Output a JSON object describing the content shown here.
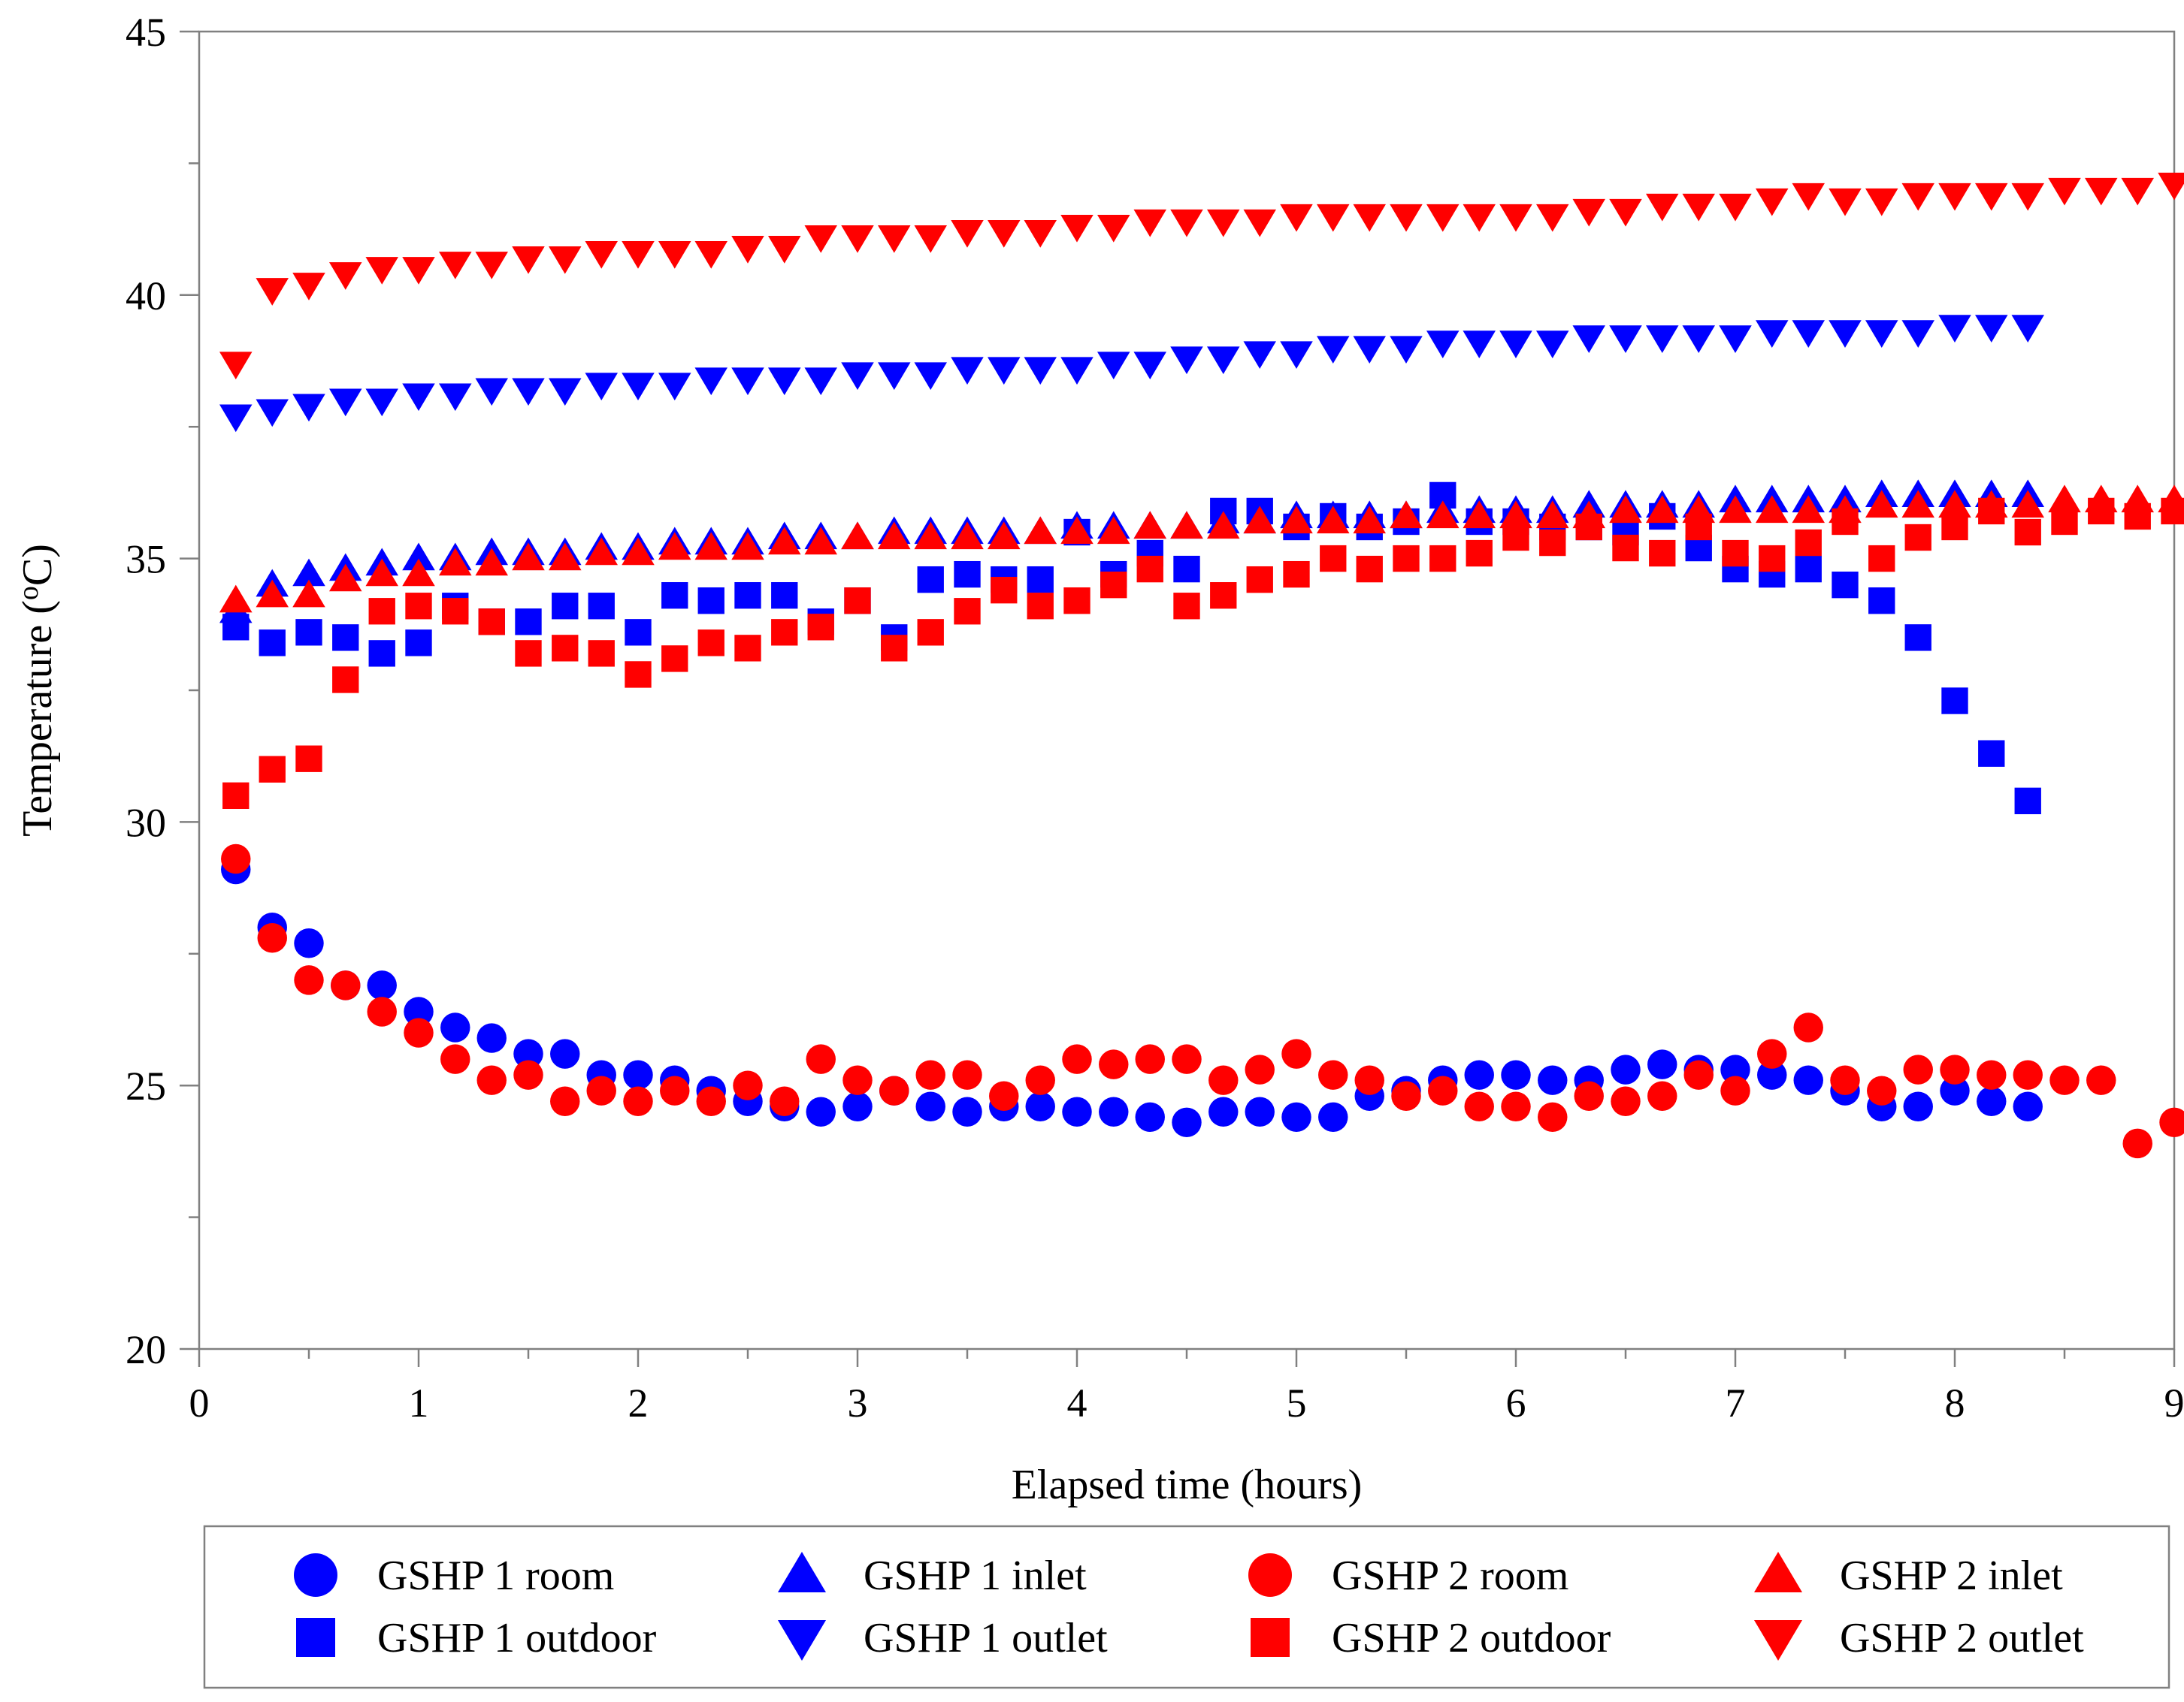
{
  "chart_data": {
    "type": "scatter",
    "title": "",
    "xlabel": "Elapsed time (hours)",
    "ylabel": "Temperature (",
    "ylabel_sup": "o",
    "ylabel_tail": "C)",
    "xlim": [
      0,
      9
    ],
    "ylim": [
      20,
      45
    ],
    "xticks": [
      0,
      1,
      2,
      3,
      4,
      5,
      6,
      7,
      8,
      9
    ],
    "yticks": [
      20,
      25,
      30,
      35,
      40,
      45
    ],
    "grid": false,
    "legend_position": "bottom",
    "x": [
      0.167,
      0.333,
      0.5,
      0.667,
      0.833,
      1.0,
      1.167,
      1.333,
      1.5,
      1.667,
      1.833,
      2.0,
      2.167,
      2.333,
      2.5,
      2.667,
      2.833,
      3.0,
      3.167,
      3.333,
      3.5,
      3.667,
      3.833,
      4.0,
      4.167,
      4.333,
      4.5,
      4.667,
      4.833,
      5.0,
      5.167,
      5.333,
      5.5,
      5.667,
      5.833,
      6.0,
      6.167,
      6.333,
      6.5,
      6.667,
      6.833,
      7.0,
      7.167,
      7.333,
      7.5,
      7.667,
      7.833,
      8.0,
      8.167,
      8.333,
      8.5,
      8.667,
      8.833,
      9.0
    ],
    "series": [
      {
        "name": "GSHP 1 room",
        "color": "#0000ff",
        "marker": "circle",
        "values": [
          29.1,
          28.0,
          27.7,
          26.9,
          26.9,
          26.4,
          26.1,
          25.9,
          25.6,
          25.6,
          25.2,
          25.2,
          25.1,
          24.9,
          24.7,
          24.6,
          24.5,
          24.6,
          24.9,
          24.6,
          24.5,
          24.6,
          24.6,
          24.5,
          24.5,
          24.4,
          24.3,
          24.5,
          24.5,
          24.4,
          24.4,
          24.8,
          24.9,
          25.1,
          25.2,
          25.2,
          25.1,
          25.1,
          25.3,
          25.4,
          25.3,
          25.3,
          25.2,
          25.1,
          24.9,
          24.6,
          24.6,
          24.9,
          24.7,
          24.6,
          null,
          null,
          null,
          null
        ]
      },
      {
        "name": "GSHP 1 outdoor",
        "color": "#0000ff",
        "marker": "square",
        "values": [
          33.7,
          33.4,
          33.6,
          33.5,
          33.2,
          33.4,
          34.1,
          33.8,
          33.8,
          34.1,
          34.1,
          33.6,
          34.3,
          34.2,
          34.3,
          34.3,
          33.8,
          34.2,
          33.5,
          34.6,
          34.7,
          34.6,
          34.6,
          35.5,
          34.7,
          35.1,
          34.8,
          35.9,
          35.9,
          35.6,
          35.8,
          35.6,
          35.7,
          36.2,
          35.7,
          35.7,
          35.6,
          35.6,
          35.5,
          35.8,
          35.2,
          34.8,
          34.7,
          34.8,
          34.5,
          34.2,
          33.5,
          32.3,
          31.3,
          30.4,
          null,
          null,
          null,
          null
        ]
      },
      {
        "name": "GSHP 1 inlet",
        "color": "#0000ff",
        "marker": "triangle-up",
        "values": [
          34.0,
          34.5,
          34.7,
          34.8,
          34.9,
          35.0,
          35.0,
          35.1,
          35.1,
          35.1,
          35.2,
          35.2,
          35.3,
          35.3,
          35.3,
          35.4,
          35.4,
          35.4,
          35.5,
          35.5,
          35.5,
          35.5,
          35.5,
          35.6,
          35.6,
          35.6,
          35.6,
          35.7,
          35.7,
          35.8,
          35.8,
          35.8,
          35.8,
          35.9,
          35.9,
          35.9,
          35.9,
          36.0,
          36.0,
          36.0,
          36.0,
          36.1,
          36.1,
          36.1,
          36.1,
          36.2,
          36.2,
          36.2,
          36.2,
          36.2,
          null,
          null,
          null,
          null
        ]
      },
      {
        "name": "GSHP 1 outlet",
        "color": "#0000ff",
        "marker": "triangle-down",
        "values": [
          37.7,
          37.8,
          37.9,
          38.0,
          38.0,
          38.1,
          38.1,
          38.2,
          38.2,
          38.2,
          38.3,
          38.3,
          38.3,
          38.4,
          38.4,
          38.4,
          38.4,
          38.5,
          38.5,
          38.5,
          38.6,
          38.6,
          38.6,
          38.6,
          38.7,
          38.7,
          38.8,
          38.8,
          38.9,
          38.9,
          39.0,
          39.0,
          39.0,
          39.1,
          39.1,
          39.1,
          39.1,
          39.2,
          39.2,
          39.2,
          39.2,
          39.2,
          39.3,
          39.3,
          39.3,
          39.3,
          39.3,
          39.4,
          39.4,
          39.4,
          null,
          null,
          null,
          null
        ]
      },
      {
        "name": "GSHP 2 room",
        "color": "#ff0000",
        "marker": "circle",
        "values": [
          29.3,
          27.8,
          27.0,
          26.9,
          26.4,
          26.0,
          25.5,
          25.1,
          25.2,
          24.7,
          24.9,
          24.7,
          24.9,
          24.7,
          25.0,
          24.7,
          25.5,
          25.1,
          24.9,
          25.2,
          25.2,
          24.8,
          25.1,
          25.5,
          25.4,
          25.5,
          25.5,
          25.1,
          25.3,
          25.6,
          25.2,
          25.1,
          24.8,
          24.9,
          24.6,
          24.6,
          24.4,
          24.8,
          24.7,
          24.8,
          25.2,
          24.9,
          25.6,
          26.1,
          25.1,
          24.9,
          25.3,
          25.3,
          25.2,
          25.2,
          25.1,
          25.1,
          23.9,
          24.3
        ]
      },
      {
        "name": "GSHP 2 outdoor",
        "color": "#ff0000",
        "marker": "square",
        "values": [
          30.5,
          31.0,
          31.2,
          32.7,
          34.0,
          34.1,
          34.0,
          33.8,
          33.2,
          33.3,
          33.2,
          32.8,
          33.1,
          33.4,
          33.3,
          33.6,
          33.7,
          34.2,
          33.3,
          33.6,
          34.0,
          34.4,
          34.1,
          34.2,
          34.5,
          34.8,
          34.1,
          34.3,
          34.6,
          34.7,
          35.0,
          34.8,
          35.0,
          35.0,
          35.1,
          35.4,
          35.3,
          35.6,
          35.2,
          35.1,
          35.6,
          35.1,
          35.0,
          35.3,
          35.7,
          35.0,
          35.4,
          35.6,
          35.9,
          35.5,
          35.7,
          35.9,
          35.8,
          35.9
        ]
      },
      {
        "name": "GSHP 2 inlet",
        "color": "#ff0000",
        "marker": "triangle-up",
        "values": [
          34.2,
          34.3,
          34.3,
          34.6,
          34.7,
          34.7,
          34.9,
          34.9,
          35.0,
          35.0,
          35.1,
          35.1,
          35.2,
          35.2,
          35.2,
          35.3,
          35.3,
          35.4,
          35.4,
          35.4,
          35.4,
          35.4,
          35.5,
          35.5,
          35.5,
          35.6,
          35.6,
          35.6,
          35.7,
          35.7,
          35.7,
          35.7,
          35.8,
          35.8,
          35.8,
          35.8,
          35.8,
          35.8,
          35.9,
          35.9,
          35.9,
          35.9,
          35.9,
          35.9,
          35.9,
          36.0,
          36.0,
          36.0,
          36.0,
          36.0,
          36.1,
          36.1,
          36.1,
          36.1
        ]
      },
      {
        "name": "GSHP 2 outlet",
        "color": "#ff0000",
        "marker": "triangle-down",
        "values": [
          38.7,
          40.1,
          40.2,
          40.4,
          40.5,
          40.5,
          40.6,
          40.6,
          40.7,
          40.7,
          40.8,
          40.8,
          40.8,
          40.8,
          40.9,
          40.9,
          41.1,
          41.1,
          41.1,
          41.1,
          41.2,
          41.2,
          41.2,
          41.3,
          41.3,
          41.4,
          41.4,
          41.4,
          41.4,
          41.5,
          41.5,
          41.5,
          41.5,
          41.5,
          41.5,
          41.5,
          41.5,
          41.6,
          41.6,
          41.7,
          41.7,
          41.7,
          41.8,
          41.9,
          41.8,
          41.8,
          41.9,
          41.9,
          41.9,
          41.9,
          42.0,
          42.0,
          42.0,
          42.1
        ]
      }
    ]
  }
}
